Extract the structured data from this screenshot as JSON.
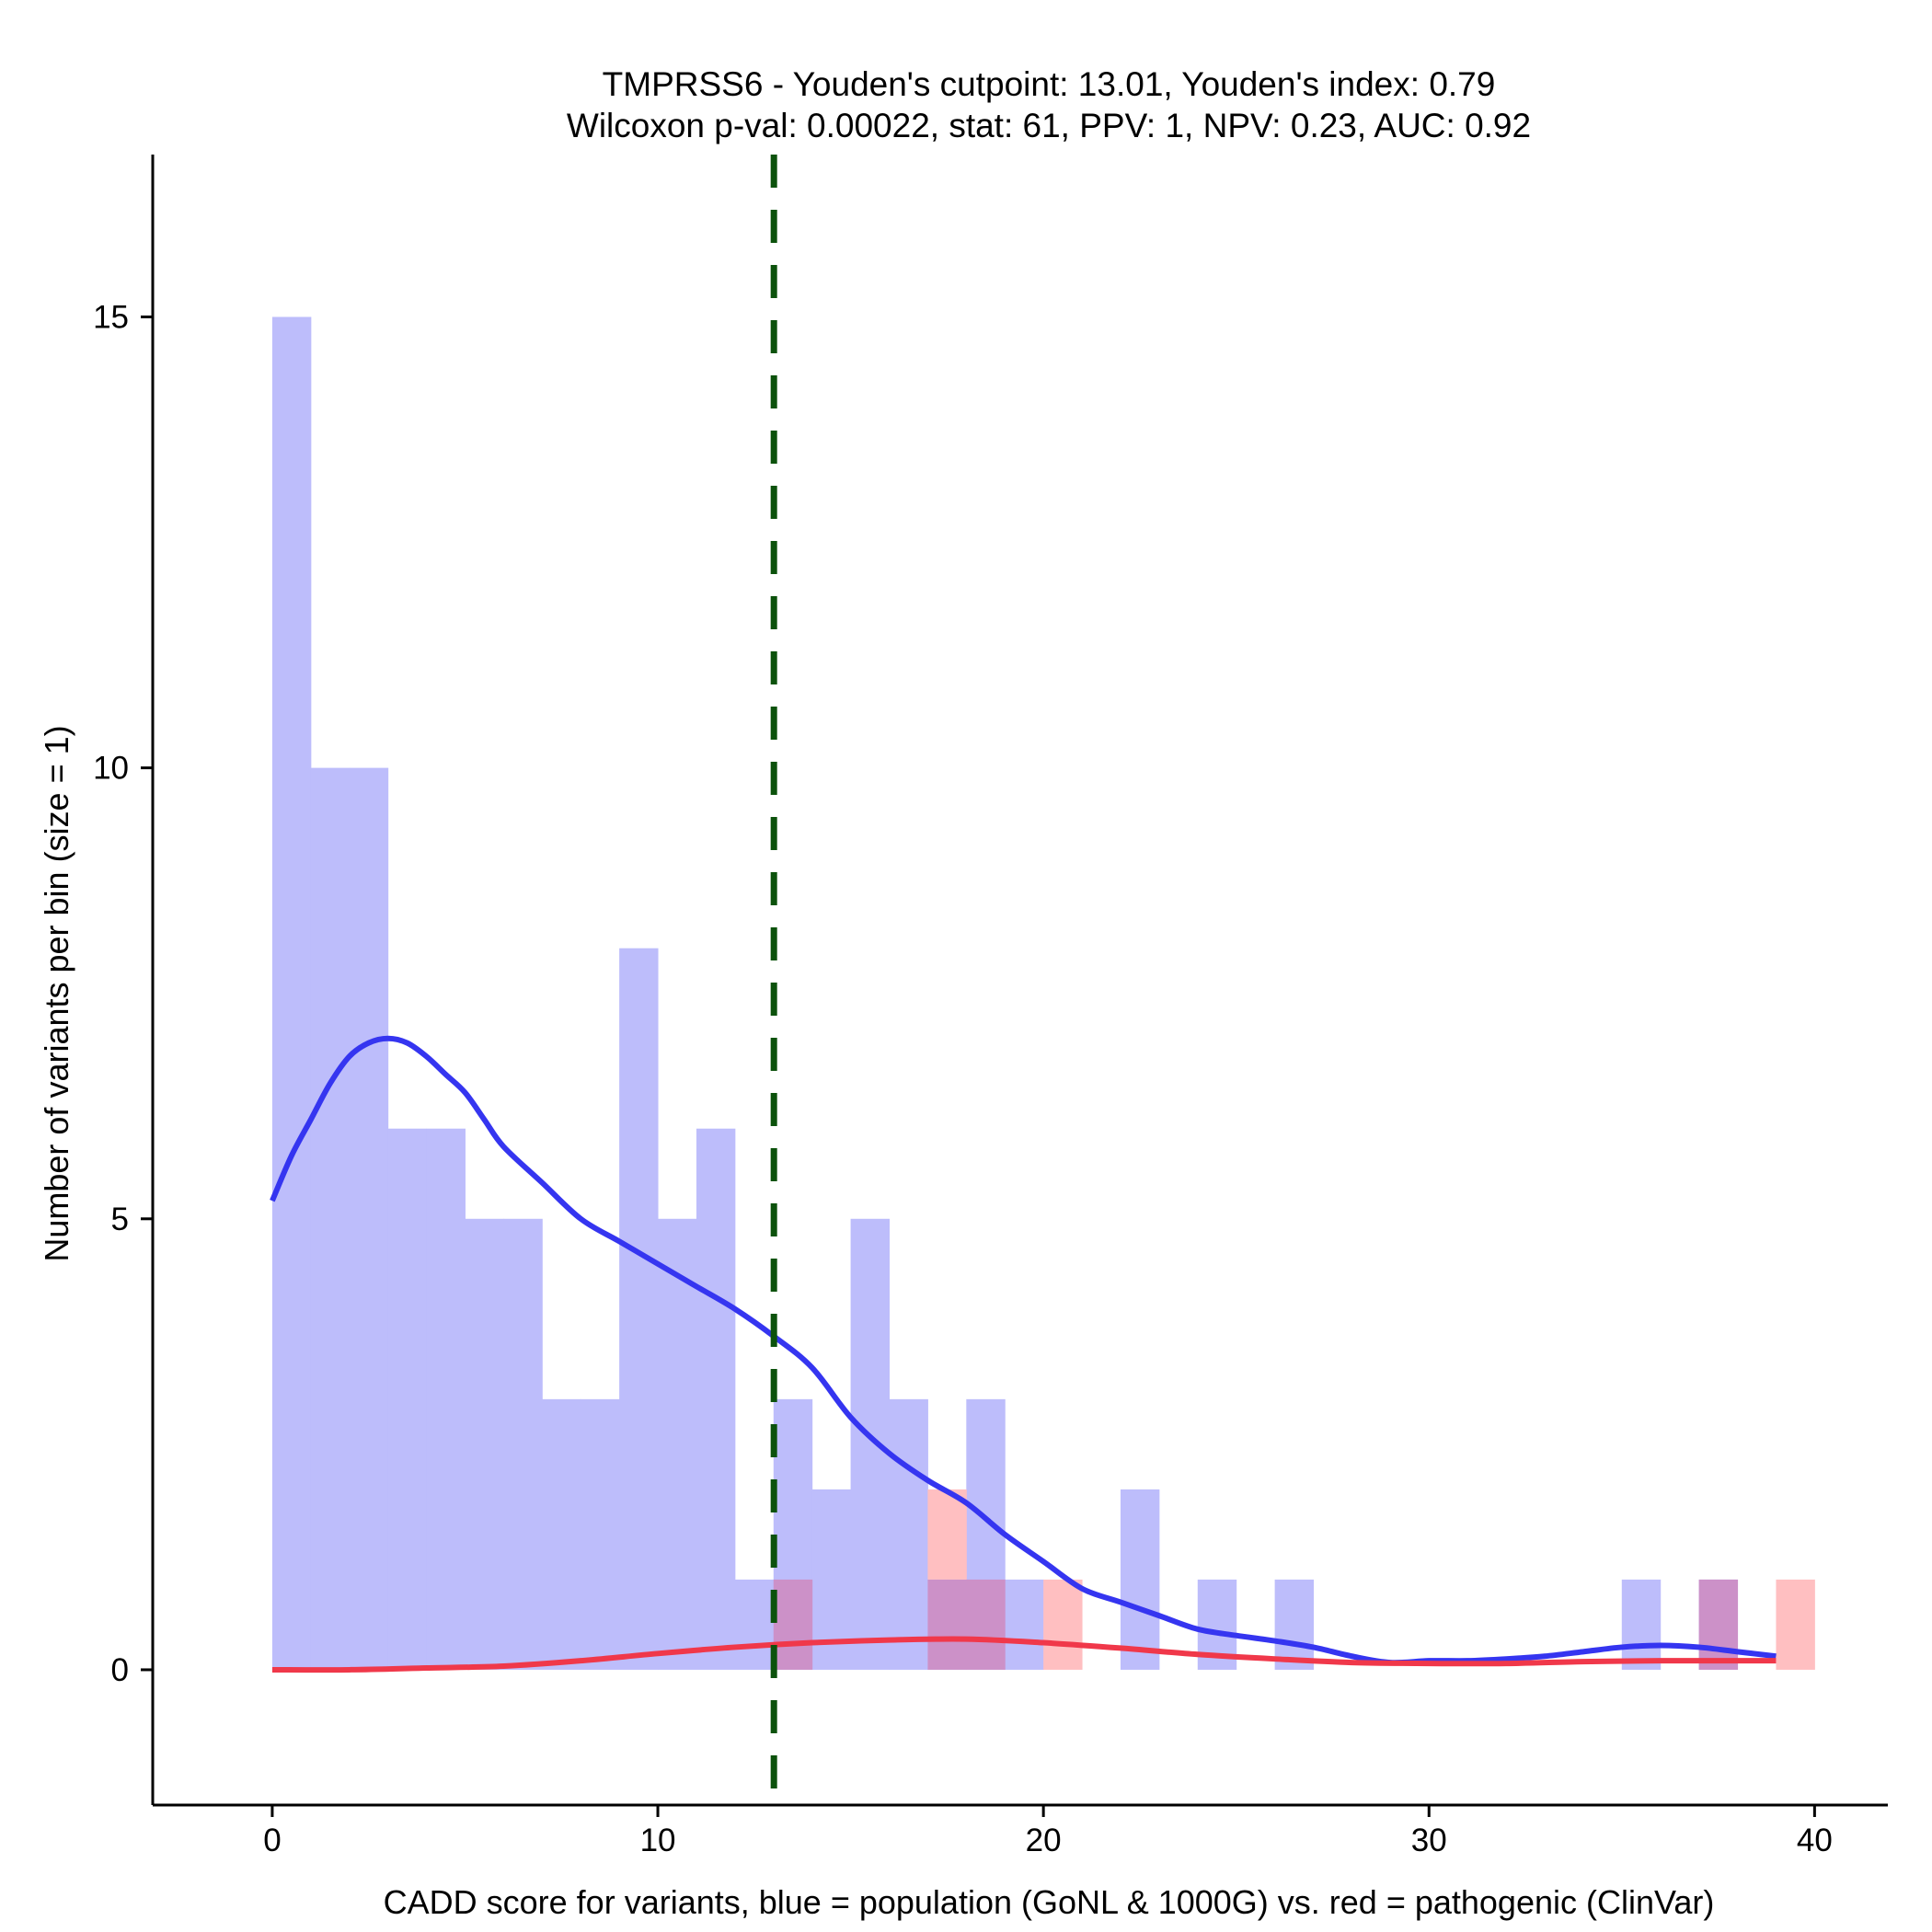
{
  "chart_data": {
    "type": "histogram",
    "title_line1": "TMPRSS6 - Youden's cutpoint: 13.01, Youden's index: 0.79",
    "title_line2": "Wilcoxon p-val: 0.00022, stat: 61, PPV: 1, NPV: 0.23, AUC: 0.92",
    "xlabel": "CADD score for variants, blue = population (GoNL & 1000G) vs. red = pathogenic (ClinVar)",
    "ylabel": "Number of variants per bin (size = 1)",
    "xlim": [
      -3.1,
      41.9
    ],
    "ylim": [
      -1.5,
      16.8
    ],
    "xticks": [
      0,
      10,
      20,
      30,
      40
    ],
    "yticks": [
      0,
      5,
      10,
      15
    ],
    "bin_width": 1,
    "cutpoint": 13.01,
    "colors": {
      "population_fill": "#bdbdfb",
      "pathogenic_fill": "#ffbfc1",
      "overlap_fill": "#cc91c8",
      "population_line": "#3535f0",
      "pathogenic_line": "#f0384a",
      "cutpoint_line": "#0c520c"
    },
    "series": [
      {
        "name": "population (GoNL & 1000G)",
        "bins": [
          {
            "start": 0,
            "count": 15
          },
          {
            "start": 1,
            "count": 10
          },
          {
            "start": 2,
            "count": 10
          },
          {
            "start": 3,
            "count": 6
          },
          {
            "start": 4,
            "count": 6
          },
          {
            "start": 5,
            "count": 5
          },
          {
            "start": 6,
            "count": 5
          },
          {
            "start": 7,
            "count": 3
          },
          {
            "start": 8,
            "count": 3
          },
          {
            "start": 9,
            "count": 8
          },
          {
            "start": 10,
            "count": 5
          },
          {
            "start": 11,
            "count": 6
          },
          {
            "start": 12,
            "count": 1
          },
          {
            "start": 13,
            "count": 3
          },
          {
            "start": 14,
            "count": 2
          },
          {
            "start": 15,
            "count": 5
          },
          {
            "start": 16,
            "count": 3
          },
          {
            "start": 17,
            "count": 1
          },
          {
            "start": 18,
            "count": 3
          },
          {
            "start": 19,
            "count": 1
          },
          {
            "start": 22,
            "count": 2
          },
          {
            "start": 24,
            "count": 1
          },
          {
            "start": 26,
            "count": 1
          },
          {
            "start": 35,
            "count": 1
          },
          {
            "start": 37,
            "count": 1
          }
        ],
        "density_curve": [
          [
            0,
            5.2
          ],
          [
            0.5,
            5.7
          ],
          [
            1,
            6.1
          ],
          [
            1.5,
            6.5
          ],
          [
            2,
            6.8
          ],
          [
            2.5,
            6.95
          ],
          [
            3,
            7.0
          ],
          [
            3.5,
            6.95
          ],
          [
            4,
            6.8
          ],
          [
            4.5,
            6.6
          ],
          [
            5,
            6.4
          ],
          [
            5.5,
            6.1
          ],
          [
            6,
            5.8
          ],
          [
            7,
            5.4
          ],
          [
            8,
            5.0
          ],
          [
            9,
            4.75
          ],
          [
            10,
            4.5
          ],
          [
            11,
            4.25
          ],
          [
            12,
            4.0
          ],
          [
            13,
            3.7
          ],
          [
            14,
            3.35
          ],
          [
            15,
            2.8
          ],
          [
            16,
            2.4
          ],
          [
            17,
            2.1
          ],
          [
            18,
            1.85
          ],
          [
            19,
            1.5
          ],
          [
            20,
            1.2
          ],
          [
            21,
            0.9
          ],
          [
            22,
            0.75
          ],
          [
            23,
            0.6
          ],
          [
            24,
            0.45
          ],
          [
            25,
            0.38
          ],
          [
            26,
            0.32
          ],
          [
            27,
            0.25
          ],
          [
            28,
            0.15
          ],
          [
            29,
            0.08
          ],
          [
            30,
            0.1
          ],
          [
            31,
            0.1
          ],
          [
            32,
            0.12
          ],
          [
            33,
            0.15
          ],
          [
            34,
            0.2
          ],
          [
            35,
            0.25
          ],
          [
            36,
            0.27
          ],
          [
            37,
            0.25
          ],
          [
            38,
            0.2
          ],
          [
            39,
            0.15
          ]
        ]
      },
      {
        "name": "pathogenic (ClinVar)",
        "bins": [
          {
            "start": 13,
            "count": 1
          },
          {
            "start": 17,
            "count": 2
          },
          {
            "start": 18,
            "count": 1
          },
          {
            "start": 20,
            "count": 1
          },
          {
            "start": 37,
            "count": 1
          },
          {
            "start": 39,
            "count": 1
          }
        ],
        "density_curve": [
          [
            0,
            0
          ],
          [
            2,
            0
          ],
          [
            4,
            0.02
          ],
          [
            6,
            0.04
          ],
          [
            8,
            0.1
          ],
          [
            10,
            0.18
          ],
          [
            12,
            0.25
          ],
          [
            14,
            0.3
          ],
          [
            16,
            0.33
          ],
          [
            18,
            0.34
          ],
          [
            20,
            0.3
          ],
          [
            22,
            0.24
          ],
          [
            24,
            0.17
          ],
          [
            26,
            0.12
          ],
          [
            28,
            0.08
          ],
          [
            30,
            0.07
          ],
          [
            32,
            0.07
          ],
          [
            34,
            0.09
          ],
          [
            36,
            0.1
          ],
          [
            39,
            0.1
          ]
        ]
      }
    ]
  }
}
